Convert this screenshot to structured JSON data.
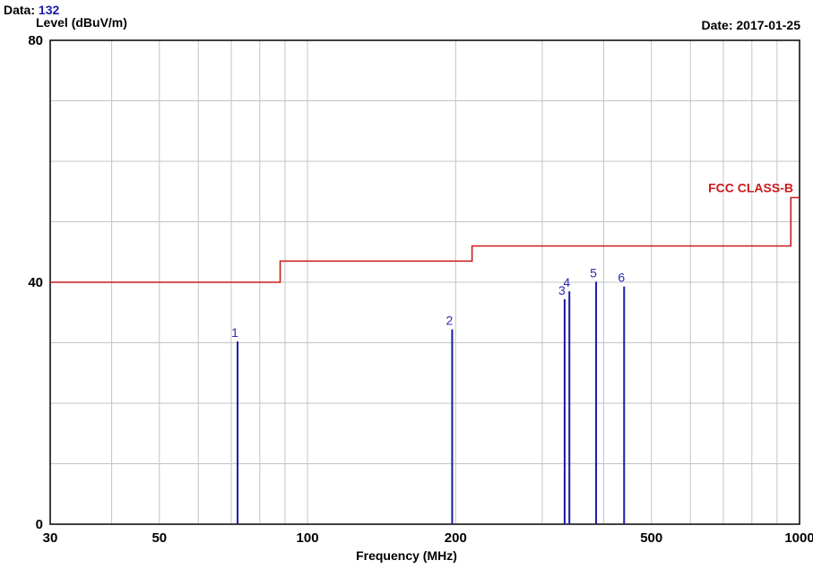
{
  "header": {
    "data_label": "Data:",
    "data_value": "132",
    "date_text": "Date: 2017-01-25"
  },
  "chart_data": {
    "type": "line",
    "xscale": "log",
    "xlim": [
      30,
      1000
    ],
    "ylim": [
      0,
      80
    ],
    "xlabel": "Frequency (MHz)",
    "ylabel": "Level (dBuV/m)",
    "xticks": [
      30,
      50,
      100,
      200,
      500,
      1000
    ],
    "yticks": [
      0,
      40,
      80
    ],
    "grid": true,
    "limit_line": {
      "name": "FCC CLASS-B",
      "color": "#cc1a1a",
      "points": [
        [
          30,
          40
        ],
        [
          88,
          40
        ],
        [
          88,
          43.5
        ],
        [
          216,
          43.5
        ],
        [
          216,
          46
        ],
        [
          960,
          46
        ],
        [
          960,
          54
        ],
        [
          1000,
          54
        ]
      ]
    },
    "markers": {
      "color": "#1a1aa8",
      "points": [
        {
          "label": "1",
          "x": 72.1,
          "y": 30.2
        },
        {
          "label": "2",
          "x": 196.8,
          "y": 32.2
        },
        {
          "label": "3",
          "x": 333.1,
          "y": 37.2
        },
        {
          "label": "4",
          "x": 340.6,
          "y": 38.5
        },
        {
          "label": "5",
          "x": 386.0,
          "y": 40.1
        },
        {
          "label": "6",
          "x": 440.0,
          "y": 39.3
        }
      ]
    }
  }
}
